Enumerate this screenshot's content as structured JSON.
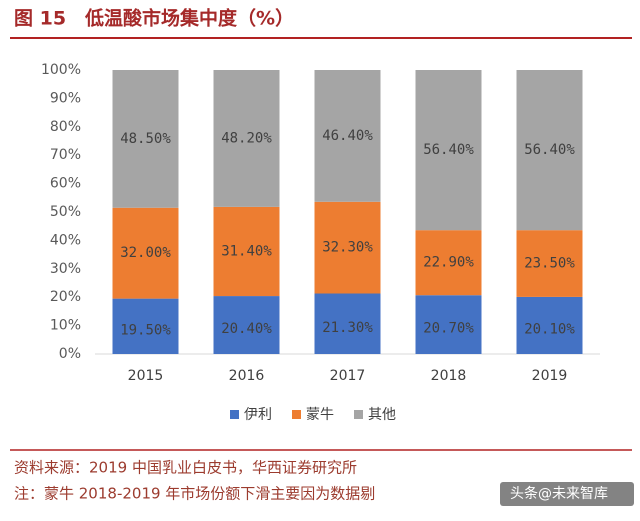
{
  "header": {
    "title": "图 15　低温酸市场集中度（%）"
  },
  "chart_data": {
    "type": "stacked_bar",
    "categories": [
      "2015",
      "2016",
      "2017",
      "2018",
      "2019"
    ],
    "series": [
      {
        "name": "伊利",
        "color": "#4472c4",
        "values": [
          19.5,
          20.4,
          21.3,
          20.7,
          20.1
        ],
        "value_labels": [
          "19.50%",
          "20.40%",
          "21.30%",
          "20.70%",
          "20.10%"
        ]
      },
      {
        "name": "蒙牛",
        "color": "#ed7d31",
        "values": [
          32.0,
          31.4,
          32.3,
          22.9,
          23.5
        ],
        "value_labels": [
          "32.00%",
          "31.40%",
          "32.30%",
          "22.90%",
          "23.50%"
        ]
      },
      {
        "name": "其他",
        "color": "#a5a5a5",
        "values": [
          48.5,
          48.2,
          46.4,
          56.4,
          56.4
        ],
        "value_labels": [
          "48.50%",
          "48.20%",
          "46.40%",
          "56.40%",
          "56.40%"
        ]
      }
    ],
    "ylim": [
      0,
      100
    ],
    "yticks": [
      {
        "value": 0,
        "label": "0%"
      },
      {
        "value": 10,
        "label": "10%"
      },
      {
        "value": 20,
        "label": "20%"
      },
      {
        "value": 30,
        "label": "30%"
      },
      {
        "value": 40,
        "label": "40%"
      },
      {
        "value": 50,
        "label": "50%"
      },
      {
        "value": 60,
        "label": "60%"
      },
      {
        "value": 70,
        "label": "70%"
      },
      {
        "value": 80,
        "label": "80%"
      },
      {
        "value": 90,
        "label": "90%"
      },
      {
        "value": 100,
        "label": "100%"
      }
    ]
  },
  "footer": {
    "source": "资料来源：2019 中国乳业白皮书，华西证券研究所",
    "note": "注：蒙牛 2018-2019 年市场份额下滑主要因为数据剔",
    "watermark": "头条@未来智库"
  }
}
